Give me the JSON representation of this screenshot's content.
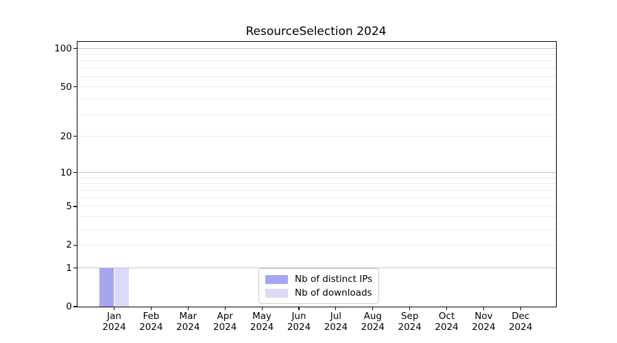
{
  "chart_data": {
    "type": "bar",
    "title": "ResourceSelection 2024",
    "categories": [
      "Jan 2024",
      "Feb 2024",
      "Mar 2024",
      "Apr 2024",
      "May 2024",
      "Jun 2024",
      "Jul 2024",
      "Aug 2024",
      "Sep 2024",
      "Oct 2024",
      "Nov 2024",
      "Dec 2024"
    ],
    "month_labels": [
      "Jan",
      "Feb",
      "Mar",
      "Apr",
      "May",
      "Jun",
      "Jul",
      "Aug",
      "Sep",
      "Oct",
      "Nov",
      "Dec"
    ],
    "year_label": "2024",
    "series": [
      {
        "name": "Nb of distinct IPs",
        "color": "#a6a6f0",
        "values": [
          1,
          0,
          0,
          0,
          0,
          0,
          0,
          0,
          0,
          0,
          0,
          0
        ]
      },
      {
        "name": "Nb of downloads",
        "color": "#dbdbf8",
        "values": [
          1,
          0,
          0,
          0,
          0,
          0,
          0,
          0,
          0,
          0,
          0,
          0
        ]
      }
    ],
    "yscale": "log1p",
    "ylim": [
      0,
      113
    ],
    "yticks": [
      0,
      1,
      2,
      5,
      10,
      20,
      50,
      100
    ],
    "ytick_labels": [
      "0",
      "1",
      "2",
      "5",
      "10",
      "20",
      "50",
      "100"
    ],
    "major_gridlines": [
      1,
      10,
      100
    ],
    "minor_gridlines": [
      2,
      3,
      4,
      5,
      6,
      7,
      8,
      9,
      20,
      30,
      40,
      50,
      60,
      70,
      80,
      90
    ],
    "grid": true,
    "legend_position": "lower center"
  },
  "colors": {
    "background": "#ffffff",
    "spine": "#000000",
    "major_grid": "#c2c2c2",
    "minor_grid": "#ebebeb",
    "legend_border": "#cccccc",
    "series1": "#a6a6f0",
    "series2": "#dbdbf8"
  }
}
